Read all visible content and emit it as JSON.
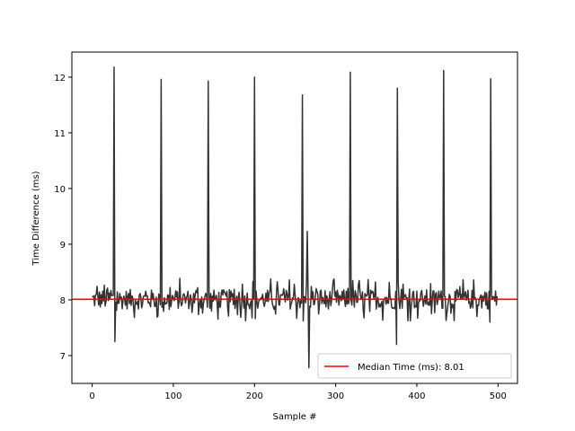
{
  "chart_data": {
    "type": "line",
    "title": "",
    "xlabel": "Sample #",
    "ylabel": "Time Difference (ms)",
    "xlim": [
      -25,
      524
    ],
    "ylim": [
      6.5,
      12.45
    ],
    "xticks": [
      0,
      100,
      200,
      300,
      400,
      500
    ],
    "yticks": [
      7,
      8,
      9,
      10,
      11,
      12
    ],
    "grid": false,
    "legend_position": "lower-right",
    "series_color": "#333333",
    "reference_line": {
      "label": "Median Time (ms): 8.01",
      "y": 8.01,
      "color": "#ff0000"
    },
    "baseline": {
      "n": 500,
      "center": 8.01,
      "noise_scale": 0.22
    },
    "spikes": [
      {
        "x": 27,
        "y": 12.18
      },
      {
        "x": 28,
        "y": 7.25
      },
      {
        "x": 85,
        "y": 11.96
      },
      {
        "x": 143,
        "y": 11.93
      },
      {
        "x": 200,
        "y": 12.0
      },
      {
        "x": 259,
        "y": 11.68
      },
      {
        "x": 260,
        "y": 7.62
      },
      {
        "x": 265,
        "y": 9.23
      },
      {
        "x": 267,
        "y": 6.78
      },
      {
        "x": 318,
        "y": 12.09
      },
      {
        "x": 376,
        "y": 11.8
      },
      {
        "x": 375,
        "y": 7.2
      },
      {
        "x": 433,
        "y": 12.12
      },
      {
        "x": 491,
        "y": 11.97
      },
      {
        "x": 490,
        "y": 7.6
      }
    ]
  }
}
